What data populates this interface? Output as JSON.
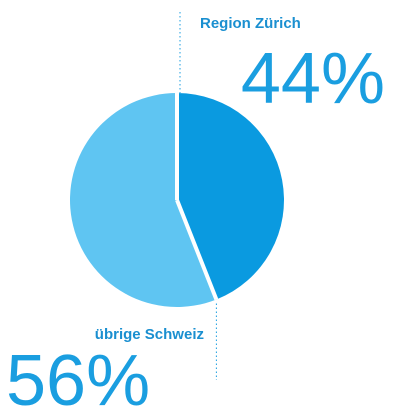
{
  "chart_data": {
    "type": "pie",
    "categories": [
      "Region Zürich",
      "übrige Schweiz"
    ],
    "values": [
      44,
      56
    ],
    "value_labels": [
      "44%",
      "56%"
    ],
    "colors": [
      "#0a9ae0",
      "#5fc5f2"
    ]
  }
}
